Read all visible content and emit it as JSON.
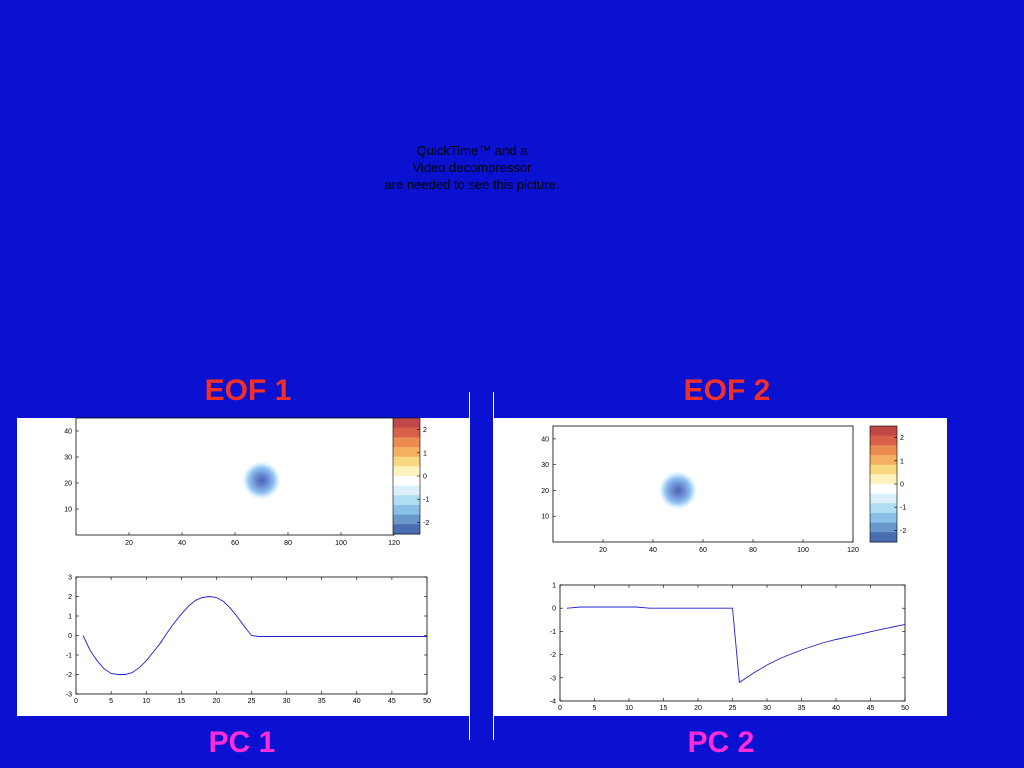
{
  "quicktime_message": [
    "QuickTime™ and a",
    "Video decompressor",
    "are needed to see this picture."
  ],
  "titles": {
    "eof1": "EOF 1",
    "eof2": "EOF 2",
    "pc1": "PC 1",
    "pc2": "PC 2"
  },
  "colors": {
    "background": "#0a11d0",
    "eof_title": "#f2302a",
    "pc_title": "#ff2bd8",
    "line": "#2020d0",
    "blob_core": "#4a64b4",
    "blob_mid": "#8ec0f0",
    "blob_edge": "#d4ecff"
  },
  "chart_data": [
    {
      "type": "heatmap",
      "id": "eof1",
      "xlim": [
        0,
        120
      ],
      "ylim": [
        0,
        45
      ],
      "xticks": [
        "20",
        "40",
        "60",
        "80",
        "100",
        "120"
      ],
      "yticks": [
        "10",
        "20",
        "30",
        "40"
      ],
      "blob_center": [
        70,
        21
      ],
      "colorbar_ticks": [
        "2",
        "1",
        "0",
        "-1",
        "-2"
      ],
      "colorbar_range": [
        -2.5,
        2.5
      ]
    },
    {
      "type": "line",
      "id": "pc1",
      "xlim": [
        0,
        50
      ],
      "ylim": [
        -3,
        3
      ],
      "xticks": [
        "0",
        "5",
        "10",
        "15",
        "20",
        "25",
        "30",
        "35",
        "40",
        "45",
        "50"
      ],
      "yticks": [
        "3",
        "2",
        "1",
        "0",
        "-1",
        "-2",
        "-3"
      ],
      "x": [
        1,
        2,
        3,
        4,
        5,
        6,
        7,
        8,
        9,
        10,
        11,
        12,
        13,
        14,
        15,
        16,
        17,
        18,
        19,
        20,
        21,
        22,
        23,
        24,
        25,
        26,
        28,
        30,
        35,
        40,
        45,
        50
      ],
      "y": [
        0,
        -0.75,
        -1.3,
        -1.7,
        -1.95,
        -2.0,
        -2.0,
        -1.9,
        -1.65,
        -1.3,
        -0.85,
        -0.4,
        0.15,
        0.65,
        1.1,
        1.5,
        1.8,
        1.95,
        2.0,
        1.95,
        1.75,
        1.4,
        0.95,
        0.45,
        0,
        -0.05,
        -0.05,
        -0.05,
        -0.05,
        -0.05,
        -0.05,
        -0.05
      ]
    },
    {
      "type": "heatmap",
      "id": "eof2",
      "xlim": [
        0,
        120
      ],
      "ylim": [
        0,
        45
      ],
      "xticks": [
        "20",
        "40",
        "60",
        "80",
        "100",
        "120"
      ],
      "yticks": [
        "10",
        "20",
        "30",
        "40"
      ],
      "blob_center": [
        50,
        20
      ],
      "colorbar_ticks": [
        "2",
        "1",
        "0",
        "-1",
        "-2"
      ],
      "colorbar_range": [
        -2.5,
        2.5
      ]
    },
    {
      "type": "line",
      "id": "pc2",
      "xlim": [
        0,
        50
      ],
      "ylim": [
        -4,
        1
      ],
      "xticks": [
        "0",
        "5",
        "10",
        "15",
        "20",
        "25",
        "30",
        "35",
        "40",
        "45",
        "50"
      ],
      "yticks": [
        "1",
        "0",
        "-1",
        "-2",
        "-3",
        "-4"
      ],
      "x": [
        1,
        3,
        5,
        8,
        11,
        13,
        15,
        20,
        25,
        26,
        28,
        30,
        32,
        35,
        38,
        40,
        43,
        46,
        50
      ],
      "y": [
        0.0,
        0.05,
        0.05,
        0.05,
        0.05,
        0.0,
        0.0,
        0.0,
        0.0,
        -3.2,
        -2.8,
        -2.45,
        -2.15,
        -1.8,
        -1.5,
        -1.35,
        -1.15,
        -0.95,
        -0.7
      ]
    }
  ]
}
